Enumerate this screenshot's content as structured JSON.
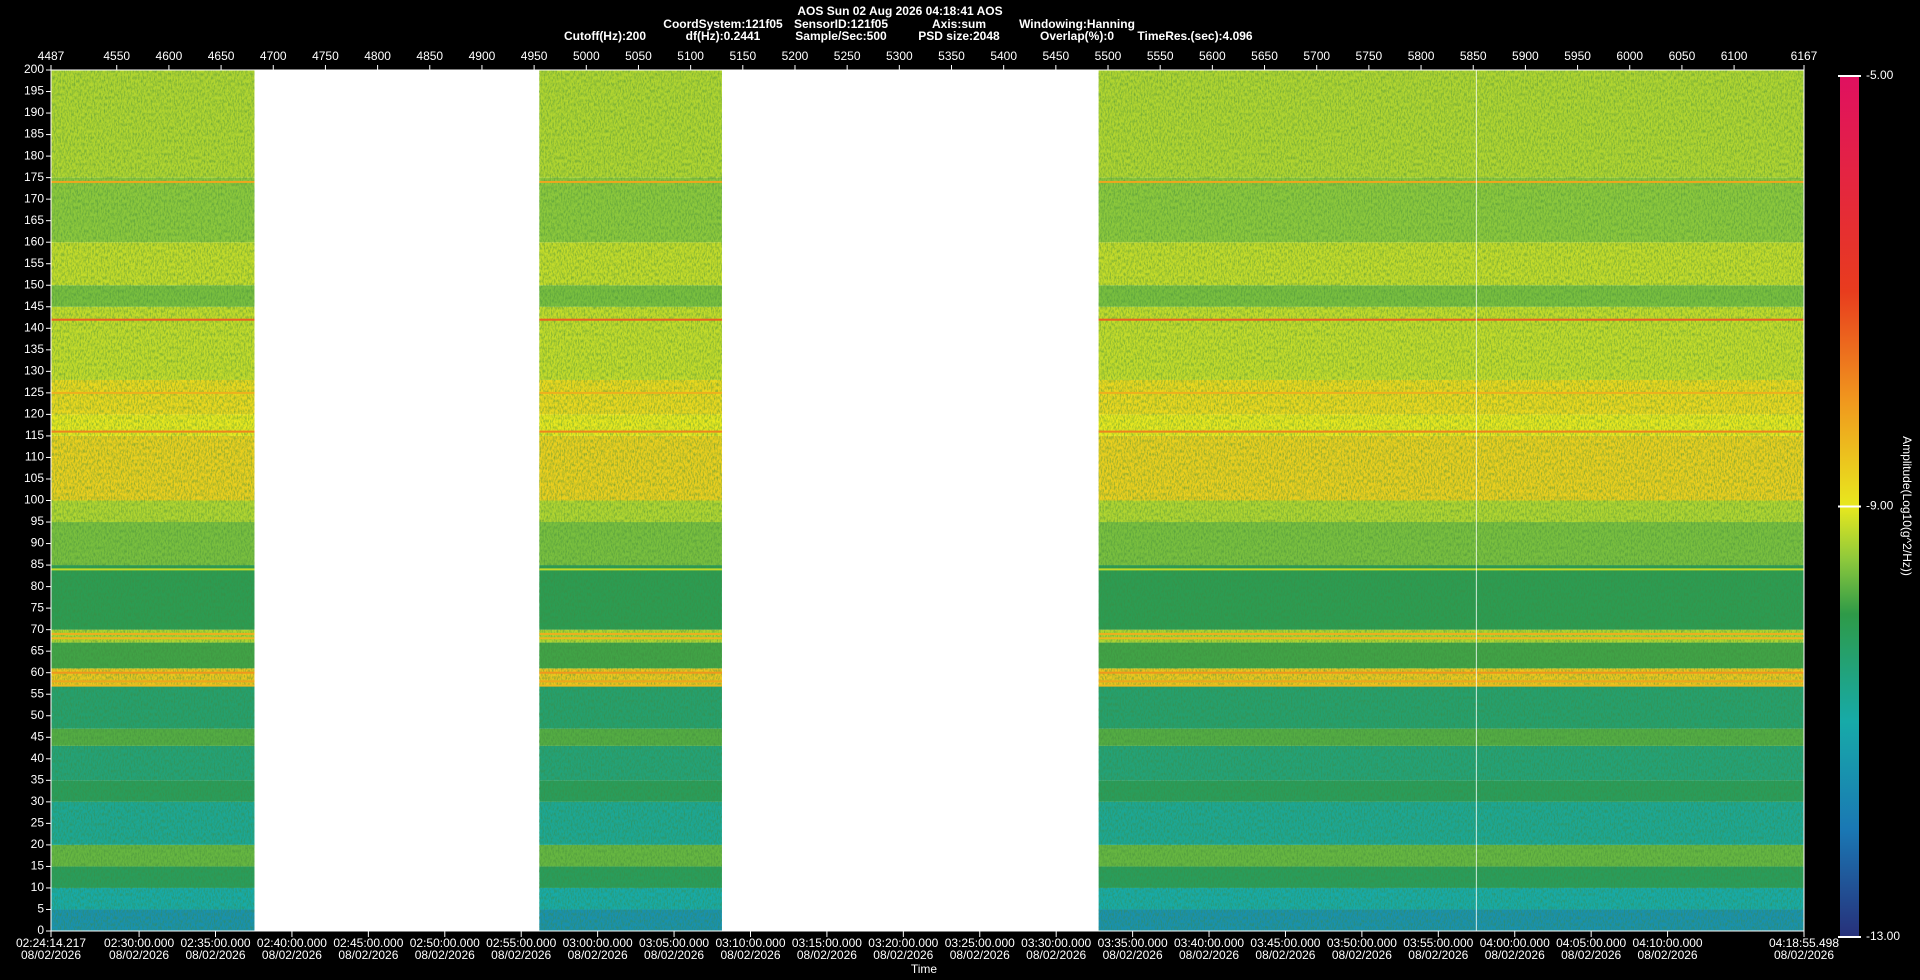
{
  "chart_data": {
    "type": "spectrogram",
    "title": "AOS  Sun 02 Aug 2026 04:18:41  AOS",
    "info_line_1": [
      "CoordSystem:121f05",
      "SensorID:121f05",
      "Axis:sum",
      "Windowing:Hanning"
    ],
    "info_line_2": [
      "Cutoff(Hz):200",
      "df(Hz):0.2441",
      "Sample/Sec:500",
      "PSD size:2048",
      "Overlap(%):0",
      "TimeRes.(sec):4.096"
    ],
    "x_label": "Time",
    "colorbar_label": "Amplitude(Log10(g^2/Hz))",
    "xlim": [
      4487,
      6167
    ],
    "xticks": [
      4487,
      4550,
      4600,
      4650,
      4700,
      4750,
      4800,
      4850,
      4900,
      4950,
      5000,
      5050,
      5100,
      5150,
      5200,
      5250,
      5300,
      5350,
      5400,
      5450,
      5500,
      5550,
      5600,
      5650,
      5700,
      5750,
      5800,
      5850,
      5900,
      5950,
      6000,
      6050,
      6100,
      6167
    ],
    "x2lim": [
      8654.217,
      15535.498
    ],
    "x2ticks": [
      {
        "value": 8654.217,
        "label": "02:24:14.217"
      },
      {
        "value": 9000,
        "label": "02:30:00.000"
      },
      {
        "value": 9300,
        "label": "02:35:00.000"
      },
      {
        "value": 9600,
        "label": "02:40:00.000"
      },
      {
        "value": 9900,
        "label": "02:45:00.000"
      },
      {
        "value": 10200,
        "label": "02:50:00.000"
      },
      {
        "value": 10500,
        "label": "02:55:00.000"
      },
      {
        "value": 10800,
        "label": "03:00:00.000"
      },
      {
        "value": 11100,
        "label": "03:05:00.000"
      },
      {
        "value": 11400,
        "label": "03:10:00.000"
      },
      {
        "value": 11700,
        "label": "03:15:00.000"
      },
      {
        "value": 12000,
        "label": "03:20:00.000"
      },
      {
        "value": 12300,
        "label": "03:25:00.000"
      },
      {
        "value": 12600,
        "label": "03:30:00.000"
      },
      {
        "value": 12900,
        "label": "03:35:00.000"
      },
      {
        "value": 13200,
        "label": "03:40:00.000"
      },
      {
        "value": 13500,
        "label": "03:45:00.000"
      },
      {
        "value": 13800,
        "label": "03:50:00.000"
      },
      {
        "value": 14100,
        "label": "03:55:00.000"
      },
      {
        "value": 14400,
        "label": "04:00:00.000"
      },
      {
        "value": 14700,
        "label": "04:05:00.000"
      },
      {
        "value": 15000,
        "label": "04:10:00.000"
      },
      {
        "value": 15535.498,
        "label": "04:18:55.498"
      }
    ],
    "x2tick_date": "08/02/2026",
    "ylim": [
      0,
      200
    ],
    "yticks": [
      0,
      5,
      10,
      15,
      20,
      25,
      30,
      35,
      40,
      45,
      50,
      55,
      60,
      65,
      70,
      75,
      80,
      85,
      90,
      95,
      100,
      105,
      110,
      115,
      120,
      125,
      130,
      135,
      140,
      145,
      150,
      155,
      160,
      165,
      170,
      175,
      180,
      185,
      190,
      195,
      200
    ],
    "segments": [
      [
        4487,
        4682
      ],
      [
        4955,
        5130
      ],
      [
        5491,
        6167
      ]
    ],
    "bands": {
      "edges": [
        0,
        5,
        10,
        15,
        20,
        30,
        35,
        43,
        47,
        57,
        61,
        67,
        70,
        85,
        95,
        100,
        115,
        120,
        128,
        145,
        150,
        160,
        175,
        200
      ],
      "values": [
        -11.5,
        -11,
        -10.2,
        -9.7,
        -10.8,
        -10.2,
        -10.5,
        -9.8,
        -10.4,
        -8.6,
        -9.9,
        -9.3,
        -10.1,
        -9.6,
        -9.3,
        -8.7,
        -9.0,
        -8.8,
        -9.2,
        -9.6,
        -9.2,
        -9.5,
        -9.3
      ]
    },
    "tones": {
      "frequencies": [
        174,
        142,
        125,
        116,
        84,
        69,
        68,
        60,
        58,
        57
      ],
      "values": [
        -8.2,
        -7.4,
        -8.3,
        -7.8,
        -9.2,
        -8.3,
        -8.4,
        -8.0,
        -8.2,
        -8.4
      ]
    },
    "cursor": 5853,
    "colorscale": [
      {
        "value": -13,
        "color": "#27307a"
      },
      {
        "value": -12,
        "color": "#1a78b4"
      },
      {
        "value": -11,
        "color": "#17aaa8"
      },
      {
        "value": -10,
        "color": "#2e9a48"
      },
      {
        "value": -9.5,
        "color": "#8cc83c"
      },
      {
        "value": -9,
        "color": "#e8e81e"
      },
      {
        "value": -8,
        "color": "#f0961e"
      },
      {
        "value": -7,
        "color": "#e83c1e"
      },
      {
        "value": -5,
        "color": "#e01060"
      }
    ],
    "cticks": [
      {
        "value": -5,
        "label": "-5.00"
      },
      {
        "value": -9,
        "label": "-9.00"
      },
      {
        "value": -13,
        "label": "-13.00"
      }
    ]
  }
}
